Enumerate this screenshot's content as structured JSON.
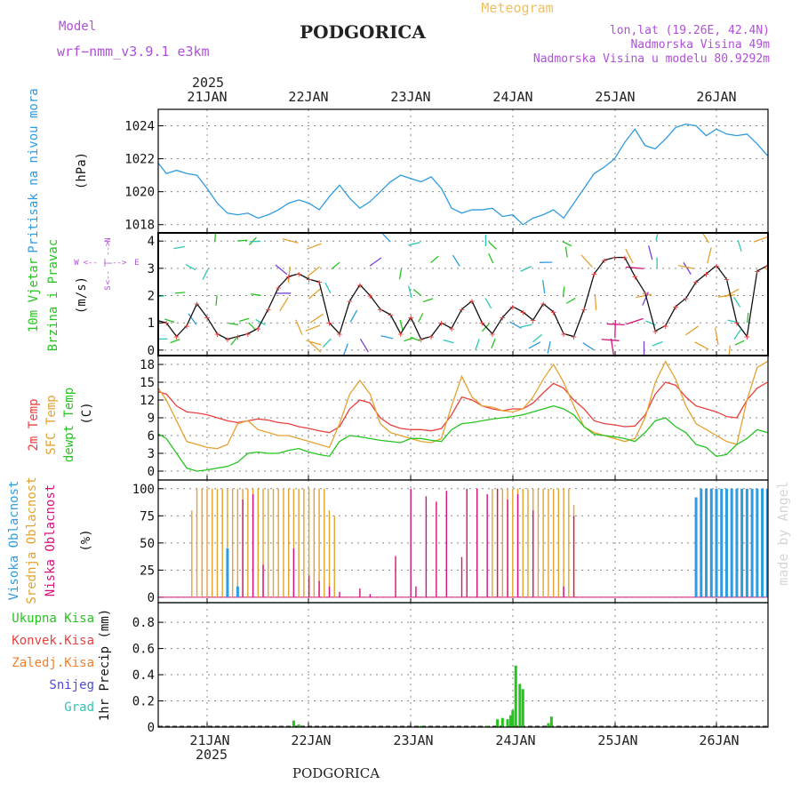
{
  "header": {
    "model_label": "Model",
    "model_name": "wrf−nmm_v3.9.1 e3km",
    "station": "PODGORICA",
    "product": "Meteogram",
    "lonlat": "lon,lat (19.26E, 42.4N)",
    "elevation": "Nadmorska Visina 49m",
    "model_elevation": "Nadmorska Visina u modelu 80.9292m"
  },
  "time_axis": {
    "year": "2025",
    "days": [
      "21JAN",
      "22JAN",
      "23JAN",
      "24JAN",
      "25JAN",
      "26JAN"
    ]
  },
  "footer": {
    "station": "PODGORICA"
  },
  "watermark": "made by Angel",
  "wind_compass": {
    "left": "W",
    "right": "E",
    "up": "N",
    "down": "S"
  },
  "colors": {
    "pressure": "#2f9be0",
    "temp2m": "#e8413f",
    "sfc_temp": "#e4a230",
    "dewpoint": "#26c41f",
    "cloud_high": "#2f9be0",
    "cloud_mid": "#e4a230",
    "cloud_low": "#d6127a",
    "precip_total": "#26c41f",
    "precip_conv": "#e8413f",
    "precip_frozen": "#f07f2a",
    "snow": "#4b4bd6",
    "graupel": "#2fc6b5",
    "wind_label": "#26c41f",
    "title_purple": "#b04fd9"
  },
  "chart_data": [
    {
      "type": "line",
      "name": "pressure",
      "title": "Pritisak na nivou mora",
      "ylabel": "(hPa)",
      "ylim": [
        1017.5,
        1025
      ],
      "yticks": [
        1018,
        1020,
        1022,
        1024
      ],
      "ytick_labels": [
        "1018",
        "1020",
        "1022",
        "1024"
      ],
      "x_units": "days since 21JAN 00UTC",
      "series": [
        {
          "name": "Pritisak",
          "x": [
            -0.5,
            -0.4,
            -0.3,
            -0.2,
            -0.1,
            0.0,
            0.1,
            0.2,
            0.3,
            0.4,
            0.5,
            0.6,
            0.7,
            0.8,
            0.9,
            1.0,
            1.1,
            1.2,
            1.3,
            1.4,
            1.5,
            1.6,
            1.7,
            1.8,
            1.9,
            2.0,
            2.1,
            2.2,
            2.3,
            2.4,
            2.5,
            2.6,
            2.7,
            2.8,
            2.9,
            3.0,
            3.1,
            3.2,
            3.3,
            3.4,
            3.5,
            3.6,
            3.7,
            3.8,
            3.9,
            4.0,
            4.1,
            4.2,
            4.3,
            4.4,
            4.5,
            4.6,
            4.7,
            4.8,
            4.9,
            5.0,
            5.1,
            5.2,
            5.3,
            5.4,
            5.5
          ],
          "values": [
            1021.9,
            1021.1,
            1021.3,
            1021.1,
            1021.0,
            1020.2,
            1019.3,
            1018.7,
            1018.6,
            1018.7,
            1018.4,
            1018.6,
            1018.9,
            1019.3,
            1019.5,
            1019.3,
            1018.9,
            1019.7,
            1020.4,
            1019.6,
            1019.0,
            1019.4,
            1020.0,
            1020.6,
            1021.0,
            1020.8,
            1020.6,
            1020.9,
            1020.2,
            1019.0,
            1018.7,
            1018.9,
            1018.9,
            1019.0,
            1018.5,
            1018.6,
            1018.0,
            1018.4,
            1018.6,
            1018.9,
            1018.4,
            1019.3,
            1020.2,
            1021.1,
            1021.5,
            1022.0,
            1023.0,
            1023.8,
            1022.8,
            1022.6,
            1023.2,
            1023.9,
            1024.1,
            1024.0,
            1023.4,
            1023.8,
            1023.5,
            1023.4,
            1023.5,
            1022.9,
            1022.2
          ]
        }
      ]
    },
    {
      "type": "line",
      "name": "wind",
      "title": "10m Vjetar",
      "subtitle": "Brzina i Pravac",
      "ylabel": "(m/s)",
      "ylim": [
        -0.2,
        4.3
      ],
      "yticks": [
        0,
        1,
        2,
        3,
        4
      ],
      "ytick_labels": [
        "0",
        "1",
        "2",
        "3",
        "4"
      ],
      "series": [
        {
          "name": "Brzina",
          "x": [
            -0.5,
            -0.4,
            -0.3,
            -0.2,
            -0.1,
            0.0,
            0.1,
            0.2,
            0.3,
            0.4,
            0.5,
            0.6,
            0.7,
            0.8,
            0.9,
            1.0,
            1.1,
            1.2,
            1.3,
            1.4,
            1.5,
            1.6,
            1.7,
            1.8,
            1.9,
            2.0,
            2.1,
            2.2,
            2.3,
            2.4,
            2.5,
            2.6,
            2.7,
            2.8,
            2.9,
            3.0,
            3.1,
            3.2,
            3.3,
            3.4,
            3.5,
            3.6,
            3.7,
            3.8,
            3.9,
            4.0,
            4.1,
            4.2,
            4.3,
            4.4,
            4.5,
            4.6,
            4.7,
            4.8,
            4.9,
            5.0,
            5.1,
            5.2,
            5.3,
            5.4,
            5.5
          ],
          "values": [
            1.1,
            1.0,
            0.5,
            0.9,
            1.7,
            1.2,
            0.6,
            0.4,
            0.5,
            0.6,
            0.8,
            1.5,
            2.3,
            2.7,
            2.8,
            2.6,
            2.5,
            1.0,
            0.6,
            1.8,
            2.4,
            2.0,
            1.5,
            1.3,
            0.6,
            1.2,
            0.4,
            0.5,
            1.0,
            0.8,
            1.5,
            1.8,
            1.0,
            0.6,
            1.2,
            1.6,
            1.4,
            1.1,
            1.7,
            1.4,
            0.6,
            0.5,
            1.5,
            2.8,
            3.3,
            3.4,
            3.4,
            2.7,
            2.1,
            0.7,
            0.9,
            1.6,
            1.9,
            2.5,
            2.8,
            3.1,
            2.6,
            1.0,
            0.5,
            2.9,
            3.1
          ]
        }
      ],
      "markers": "+",
      "arrows": "wind direction arrows colored by speed"
    },
    {
      "type": "line",
      "name": "temperature",
      "ylabel": "(C)",
      "ylim": [
        -1.5,
        19.5
      ],
      "yticks": [
        0,
        3,
        6,
        9,
        12,
        15,
        18
      ],
      "ytick_labels": [
        "0",
        "3",
        "6",
        "9",
        "12",
        "15",
        "18"
      ],
      "series": [
        {
          "name": "2m Temp",
          "x": [
            -0.5,
            -0.4,
            -0.3,
            -0.2,
            -0.1,
            0.0,
            0.1,
            0.2,
            0.3,
            0.4,
            0.5,
            0.6,
            0.7,
            0.8,
            0.9,
            1.0,
            1.1,
            1.2,
            1.3,
            1.4,
            1.5,
            1.6,
            1.7,
            1.8,
            1.9,
            2.0,
            2.1,
            2.2,
            2.3,
            2.4,
            2.5,
            2.6,
            2.7,
            2.8,
            2.9,
            3.0,
            3.1,
            3.2,
            3.3,
            3.4,
            3.5,
            3.6,
            3.7,
            3.8,
            3.9,
            4.0,
            4.1,
            4.2,
            4.3,
            4.4,
            4.5,
            4.6,
            4.7,
            4.8,
            4.9,
            5.0,
            5.1,
            5.2,
            5.3,
            5.4,
            5.5
          ],
          "values": [
            13.5,
            13.0,
            11.0,
            10.0,
            9.8,
            9.5,
            9.0,
            8.5,
            8.2,
            8.5,
            8.8,
            8.6,
            8.2,
            8.0,
            7.5,
            7.2,
            6.8,
            6.5,
            7.5,
            10.5,
            12.0,
            11.5,
            9.0,
            7.8,
            7.2,
            7.0,
            7.0,
            6.8,
            7.2,
            9.5,
            12.5,
            12.0,
            11.0,
            10.5,
            10.2,
            10.5,
            10.5,
            11.5,
            13.2,
            14.8,
            14.0,
            12.0,
            10.5,
            8.5,
            8.0,
            7.8,
            7.5,
            7.6,
            9.5,
            13.0,
            15.0,
            14.5,
            12.5,
            11.0,
            10.5,
            10.0,
            9.2,
            9.0,
            12.0,
            14.0,
            15.0
          ]
        },
        {
          "name": "SFC Temp",
          "x": [
            -0.5,
            -0.4,
            -0.3,
            -0.2,
            -0.1,
            0.0,
            0.1,
            0.2,
            0.3,
            0.4,
            0.5,
            0.6,
            0.7,
            0.8,
            0.9,
            1.0,
            1.1,
            1.2,
            1.3,
            1.4,
            1.5,
            1.6,
            1.7,
            1.8,
            1.9,
            2.0,
            2.1,
            2.2,
            2.3,
            2.4,
            2.5,
            2.6,
            2.7,
            2.8,
            2.9,
            3.0,
            3.1,
            3.2,
            3.3,
            3.4,
            3.5,
            3.6,
            3.7,
            3.8,
            3.9,
            4.0,
            4.1,
            4.2,
            4.3,
            4.4,
            4.5,
            4.6,
            4.7,
            4.8,
            4.9,
            5.0,
            5.1,
            5.2,
            5.3,
            5.4,
            5.5
          ],
          "values": [
            14.5,
            12.0,
            8.5,
            5.0,
            4.5,
            4.0,
            3.8,
            4.5,
            8.0,
            8.5,
            7.0,
            6.5,
            6.0,
            6.0,
            5.5,
            5.0,
            4.5,
            4.0,
            8.0,
            13.0,
            15.3,
            13.0,
            8.0,
            6.5,
            6.0,
            5.5,
            5.0,
            4.8,
            5.5,
            11.0,
            16.0,
            12.5,
            11.0,
            10.8,
            10.2,
            10.0,
            10.5,
            12.5,
            15.5,
            18.0,
            15.0,
            11.0,
            7.5,
            6.5,
            6.0,
            5.5,
            5.0,
            5.5,
            9.0,
            15.0,
            18.5,
            15.5,
            11.0,
            8.0,
            7.0,
            6.0,
            5.0,
            4.5,
            12.0,
            17.5,
            18.5
          ]
        },
        {
          "name": "dewpt Temp",
          "x": [
            -0.5,
            -0.4,
            -0.3,
            -0.2,
            -0.1,
            0.0,
            0.1,
            0.2,
            0.3,
            0.4,
            0.5,
            0.6,
            0.7,
            0.8,
            0.9,
            1.0,
            1.1,
            1.2,
            1.3,
            1.4,
            1.5,
            1.6,
            1.7,
            1.8,
            1.9,
            2.0,
            2.1,
            2.2,
            2.3,
            2.4,
            2.5,
            2.6,
            2.7,
            2.8,
            2.9,
            3.0,
            3.1,
            3.2,
            3.3,
            3.4,
            3.5,
            3.6,
            3.7,
            3.8,
            3.9,
            4.0,
            4.1,
            4.2,
            4.3,
            4.4,
            4.5,
            4.6,
            4.7,
            4.8,
            4.9,
            5.0,
            5.1,
            5.2,
            5.3,
            5.4,
            5.5
          ],
          "values": [
            6.5,
            5.5,
            3.0,
            0.5,
            0.0,
            0.2,
            0.5,
            0.8,
            1.5,
            3.0,
            3.2,
            3.0,
            3.0,
            3.5,
            3.8,
            3.2,
            2.8,
            2.5,
            5.0,
            6.0,
            5.8,
            5.5,
            5.2,
            5.0,
            4.8,
            5.5,
            5.5,
            5.2,
            5.0,
            7.0,
            8.0,
            8.2,
            8.5,
            8.8,
            9.0,
            9.2,
            9.5,
            10.0,
            10.5,
            11.0,
            10.5,
            9.5,
            7.5,
            6.2,
            6.0,
            5.8,
            5.5,
            5.0,
            6.5,
            8.5,
            9.0,
            7.5,
            6.5,
            4.5,
            4.0,
            2.5,
            2.8,
            4.5,
            5.5,
            7.0,
            6.5
          ]
        }
      ]
    },
    {
      "type": "bar",
      "name": "cloud",
      "ylabel": "(%)",
      "ylim": [
        -5,
        108
      ],
      "yticks": [
        0,
        25,
        50,
        75,
        100
      ],
      "ytick_labels": [
        "0",
        "25",
        "50",
        "75",
        "100"
      ],
      "series": [
        {
          "name": "Visoka Oblacnost",
          "x": [
            0.2,
            0.3,
            4.8,
            4.85,
            4.9,
            4.95,
            5.0,
            5.05,
            5.1,
            5.15,
            5.2,
            5.25,
            5.3,
            5.35,
            5.4,
            5.45,
            5.5
          ],
          "values": [
            45,
            10,
            92,
            100,
            100,
            100,
            100,
            100,
            100,
            100,
            100,
            100,
            100,
            100,
            100,
            100,
            100
          ]
        },
        {
          "name": "Srednja Oblacnost",
          "x": [
            -0.15,
            -0.1,
            -0.05,
            0.0,
            0.05,
            0.1,
            0.15,
            0.2,
            0.25,
            0.3,
            0.35,
            0.4,
            0.45,
            0.5,
            0.55,
            0.6,
            0.65,
            0.7,
            0.75,
            0.8,
            0.85,
            0.9,
            0.95,
            1.0,
            1.05,
            1.1,
            1.15,
            1.2,
            1.25,
            2.8,
            2.85,
            2.9,
            2.95,
            3.0,
            3.05,
            3.1,
            3.15,
            3.2,
            3.25,
            3.3,
            3.35,
            3.4,
            3.45,
            3.5,
            3.55,
            3.6
          ],
          "values": [
            80,
            100,
            100,
            100,
            100,
            100,
            100,
            100,
            100,
            100,
            100,
            100,
            100,
            100,
            100,
            100,
            100,
            100,
            100,
            100,
            100,
            100,
            100,
            100,
            100,
            100,
            100,
            80,
            75,
            100,
            100,
            100,
            100,
            100,
            100,
            100,
            100,
            100,
            100,
            100,
            100,
            100,
            100,
            100,
            100,
            85
          ]
        },
        {
          "name": "Niska Oblacnost",
          "x": [
            0.35,
            0.45,
            0.55,
            0.85,
            1.0,
            1.1,
            1.2,
            1.3,
            1.5,
            1.6,
            1.85,
            2.0,
            2.05,
            2.15,
            2.25,
            2.35,
            2.5,
            2.55,
            2.65,
            2.75,
            2.85,
            2.95,
            3.05,
            3.2,
            3.5,
            3.6
          ],
          "values": [
            90,
            95,
            30,
            45,
            20,
            15,
            10,
            5,
            8,
            3,
            38,
            100,
            10,
            93,
            88,
            98,
            37,
            100,
            100,
            95,
            100,
            90,
            95,
            80,
            10,
            75
          ]
        }
      ]
    },
    {
      "type": "bar",
      "name": "precip",
      "ylabel": "1hr Precip (mm)",
      "ylim": [
        0,
        0.95
      ],
      "yticks": [
        0,
        0.2,
        0.4,
        0.6,
        0.8
      ],
      "ytick_labels": [
        "0",
        "0.2",
        "0.4",
        "0.6",
        "0.8"
      ],
      "legend": [
        "Ukupna Kisa",
        "Konvek.Kisa",
        "Zaledj.Kisa",
        "Snijeg",
        "Grad"
      ],
      "series": [
        {
          "name": "Ukupna Kisa",
          "x": [
            0.85,
            0.9,
            2.1,
            2.75,
            2.85,
            2.9,
            2.95,
            2.98,
            3.0,
            3.03,
            3.07,
            3.1,
            3.35,
            3.38
          ],
          "values": [
            0.05,
            0.02,
            0.01,
            0.01,
            0.06,
            0.07,
            0.06,
            0.09,
            0.13,
            0.47,
            0.33,
            0.29,
            0.03,
            0.08
          ]
        }
      ]
    }
  ]
}
